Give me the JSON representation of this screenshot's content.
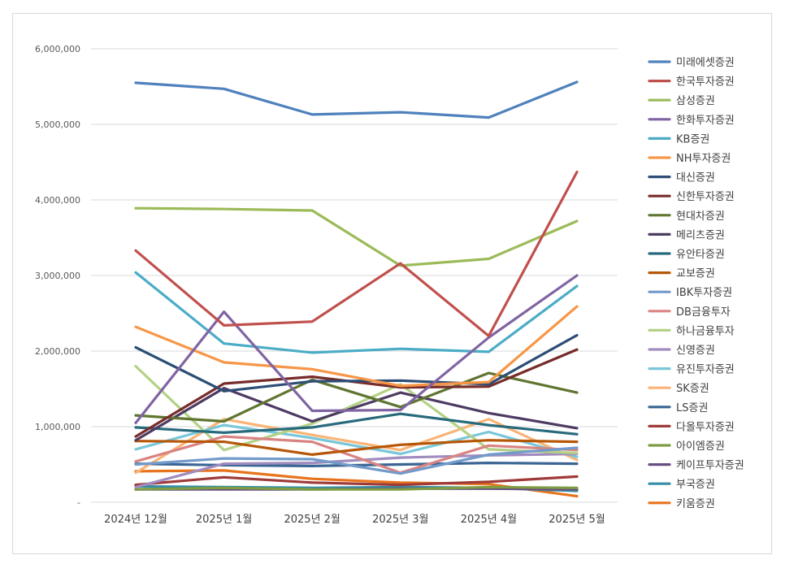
{
  "chart_data": {
    "type": "line",
    "title": "",
    "xlabel": "",
    "ylabel": "",
    "categories": [
      "2024년 12월",
      "2025년 1월",
      "2025년 2월",
      "2025년 3월",
      "2025년 4월",
      "2025년 5월"
    ],
    "y_ticks": [
      "-",
      "1,000,000",
      "2,000,000",
      "3,000,000",
      "4,000,000",
      "5,000,000",
      "6,000,000"
    ],
    "ylim": [
      0,
      6000000
    ],
    "grid": true,
    "legend_position": "right",
    "series": [
      {
        "name": "미래에셋증권",
        "color": "#4f81bd",
        "values": [
          5550000,
          5470000,
          5130000,
          5160000,
          5090000,
          5560000
        ]
      },
      {
        "name": "한국투자증권",
        "color": "#c0504d",
        "values": [
          3330000,
          2340000,
          2390000,
          3160000,
          2200000,
          4370000
        ]
      },
      {
        "name": "삼성증권",
        "color": "#9bbb59",
        "values": [
          3890000,
          3880000,
          3860000,
          3130000,
          3220000,
          3720000
        ]
      },
      {
        "name": "한화투자증권",
        "color": "#8064a2",
        "values": [
          1050000,
          2520000,
          1210000,
          1220000,
          2180000,
          3000000
        ]
      },
      {
        "name": "KB증권",
        "color": "#4bacc6",
        "values": [
          3040000,
          2100000,
          1980000,
          2030000,
          1990000,
          2860000
        ]
      },
      {
        "name": "NH투자증권",
        "color": "#f79646",
        "values": [
          2320000,
          1850000,
          1760000,
          1540000,
          1590000,
          2590000
        ]
      },
      {
        "name": "대신증권",
        "color": "#2c4d75",
        "values": [
          2050000,
          1470000,
          1600000,
          1610000,
          1560000,
          2210000
        ]
      },
      {
        "name": "신한투자증권",
        "color": "#772c2a",
        "values": [
          870000,
          1570000,
          1660000,
          1520000,
          1530000,
          2020000
        ]
      },
      {
        "name": "현대차증권",
        "color": "#5f7530",
        "values": [
          1150000,
          1070000,
          1620000,
          1260000,
          1710000,
          1450000
        ]
      },
      {
        "name": "메리츠증권",
        "color": "#4d3b62",
        "values": [
          820000,
          1510000,
          1070000,
          1450000,
          1180000,
          980000
        ]
      },
      {
        "name": "유안타증권",
        "color": "#276a7c",
        "values": [
          990000,
          920000,
          990000,
          1170000,
          1020000,
          900000
        ]
      },
      {
        "name": "교보증권",
        "color": "#b65708",
        "values": [
          810000,
          800000,
          630000,
          760000,
          820000,
          800000
        ]
      },
      {
        "name": "IBK투자증권",
        "color": "#729aca",
        "values": [
          500000,
          580000,
          570000,
          380000,
          630000,
          720000
        ]
      },
      {
        "name": "DB금융투자",
        "color": "#d98482",
        "values": [
          540000,
          870000,
          800000,
          390000,
          750000,
          690000
        ]
      },
      {
        "name": "하나금융투자",
        "color": "#b4d186",
        "values": [
          1800000,
          690000,
          1040000,
          1560000,
          700000,
          650000
        ]
      },
      {
        "name": "신영증권",
        "color": "#a08cbf",
        "values": [
          200000,
          510000,
          520000,
          590000,
          620000,
          640000
        ]
      },
      {
        "name": "유진투자증권",
        "color": "#79c7d9",
        "values": [
          700000,
          1020000,
          850000,
          640000,
          930000,
          600000
        ]
      },
      {
        "name": "SK증권",
        "color": "#f9b476",
        "values": [
          390000,
          1100000,
          890000,
          690000,
          1100000,
          560000
        ]
      },
      {
        "name": "LS증권",
        "color": "#3a6593",
        "values": [
          510000,
          490000,
          480000,
          500000,
          520000,
          510000
        ]
      },
      {
        "name": "다올투자증권",
        "color": "#9e3a38",
        "values": [
          230000,
          330000,
          260000,
          230000,
          270000,
          340000
        ]
      },
      {
        "name": "아이엠증권",
        "color": "#7e9c42",
        "values": [
          170000,
          190000,
          170000,
          170000,
          200000,
          190000
        ]
      },
      {
        "name": "케이프투자증권",
        "color": "#674e82",
        "values": [
          170000,
          170000,
          170000,
          180000,
          180000,
          170000
        ]
      },
      {
        "name": "부국증권",
        "color": "#338da5",
        "values": [
          210000,
          200000,
          190000,
          200000,
          190000,
          150000
        ]
      },
      {
        "name": "키움증권",
        "color": "#e8731d",
        "values": [
          410000,
          420000,
          310000,
          260000,
          240000,
          80000
        ]
      }
    ]
  }
}
